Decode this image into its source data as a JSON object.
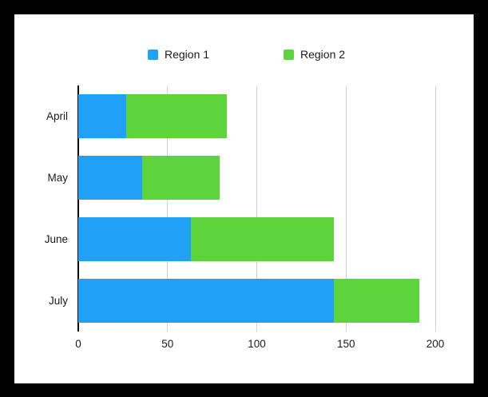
{
  "frame": {
    "background": "#000000",
    "panel_background": "#ffffff"
  },
  "legend": {
    "items": [
      {
        "label": "Region 1",
        "color": "#1fa2f6"
      },
      {
        "label": "Region 2",
        "color": "#5ed43c"
      }
    ]
  },
  "chart_data": {
    "type": "bar",
    "orientation": "horizontal",
    "stacked": true,
    "title": "",
    "xlabel": "",
    "ylabel": "",
    "categories": [
      "April",
      "May",
      "June",
      "July"
    ],
    "series": [
      {
        "name": "Region 1",
        "color": "#1fa2f6",
        "values": [
          27,
          36,
          63,
          143
        ]
      },
      {
        "name": "Region 2",
        "color": "#5ed43c",
        "values": [
          56,
          43,
          80,
          48
        ]
      }
    ],
    "totals": [
      83,
      79,
      143,
      191
    ],
    "xlim": [
      0,
      200
    ],
    "xticks": [
      0,
      50,
      100,
      150,
      200
    ],
    "grid": true,
    "gridline_color": "#d4d4d4",
    "axis_color": "#000000",
    "legend_position": "top"
  }
}
